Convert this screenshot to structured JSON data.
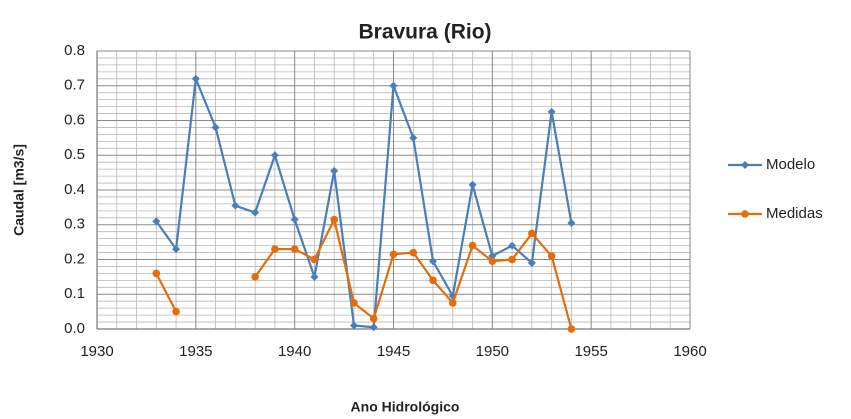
{
  "chart_data": {
    "type": "line",
    "title": "Bravura (Rio)",
    "xlabel": "Ano Hidrológico",
    "ylabel": "Caudal [m3/s]",
    "x": [
      1933,
      1934,
      1935,
      1936,
      1937,
      1938,
      1939,
      1940,
      1941,
      1942,
      1943,
      1944,
      1945,
      1946,
      1947,
      1948,
      1949,
      1950,
      1951,
      1952,
      1953,
      1954
    ],
    "series": [
      {
        "name": "Modelo",
        "color": "#4a7ebb",
        "marker": "diamond",
        "values": [
          0.31,
          0.23,
          0.72,
          0.58,
          0.355,
          0.335,
          0.5,
          0.315,
          0.15,
          0.455,
          0.01,
          0.005,
          0.7,
          0.55,
          0.195,
          0.095,
          0.415,
          0.21,
          0.24,
          0.19,
          0.625,
          0.305
        ]
      },
      {
        "name": "Medidas",
        "color": "#e46c0a",
        "marker": "circle",
        "values": [
          0.16,
          0.05,
          null,
          null,
          null,
          0.15,
          0.23,
          0.23,
          0.2,
          0.315,
          0.075,
          0.03,
          0.215,
          0.22,
          0.14,
          0.075,
          0.24,
          0.195,
          0.2,
          0.275,
          0.21,
          0.0
        ]
      }
    ],
    "xlim": [
      1930,
      1960
    ],
    "xticks": [
      1930,
      1935,
      1940,
      1945,
      1950,
      1955,
      1960
    ],
    "ylim": [
      0,
      0.8
    ],
    "yticks": [
      {
        "value": 0,
        "label": "0.0"
      },
      0.1,
      0.2,
      0.3,
      0.4,
      0.5,
      0.6,
      0.7,
      0.8
    ],
    "grid": true,
    "minor_grid": true,
    "legend": "right"
  }
}
